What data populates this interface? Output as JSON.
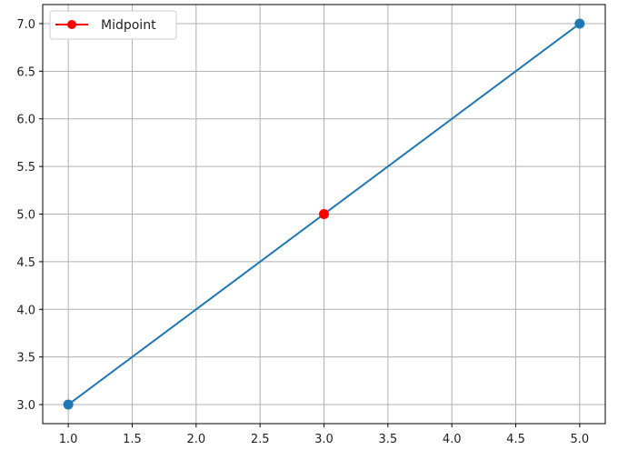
{
  "chart_data": {
    "type": "line",
    "title": "",
    "xlabel": "",
    "ylabel": "",
    "xlim": [
      0.8,
      5.2
    ],
    "ylim": [
      2.8,
      7.2
    ],
    "x_ticks": [
      1.0,
      1.5,
      2.0,
      2.5,
      3.0,
      3.5,
      4.0,
      4.5,
      5.0
    ],
    "y_ticks": [
      3.0,
      3.5,
      4.0,
      4.5,
      5.0,
      5.5,
      6.0,
      6.5,
      7.0
    ],
    "x_tick_labels": [
      "1.0",
      "1.5",
      "2.0",
      "2.5",
      "3.0",
      "3.5",
      "4.0",
      "4.5",
      "5.0"
    ],
    "y_tick_labels": [
      "3.0",
      "3.5",
      "4.0",
      "4.5",
      "5.0",
      "5.5",
      "6.0",
      "6.5",
      "7.0"
    ],
    "grid": true,
    "legend_position": "top-left",
    "series": [
      {
        "x": [
          1,
          5
        ],
        "y": [
          3,
          7
        ],
        "color": "#1f77b4",
        "marker": "circle"
      },
      {
        "name": "Midpoint",
        "x": [
          3
        ],
        "y": [
          5
        ],
        "color": "#ff0000",
        "marker": "circle"
      }
    ]
  },
  "legend": {
    "items": [
      {
        "label": "Midpoint",
        "color": "#ff0000"
      }
    ]
  }
}
